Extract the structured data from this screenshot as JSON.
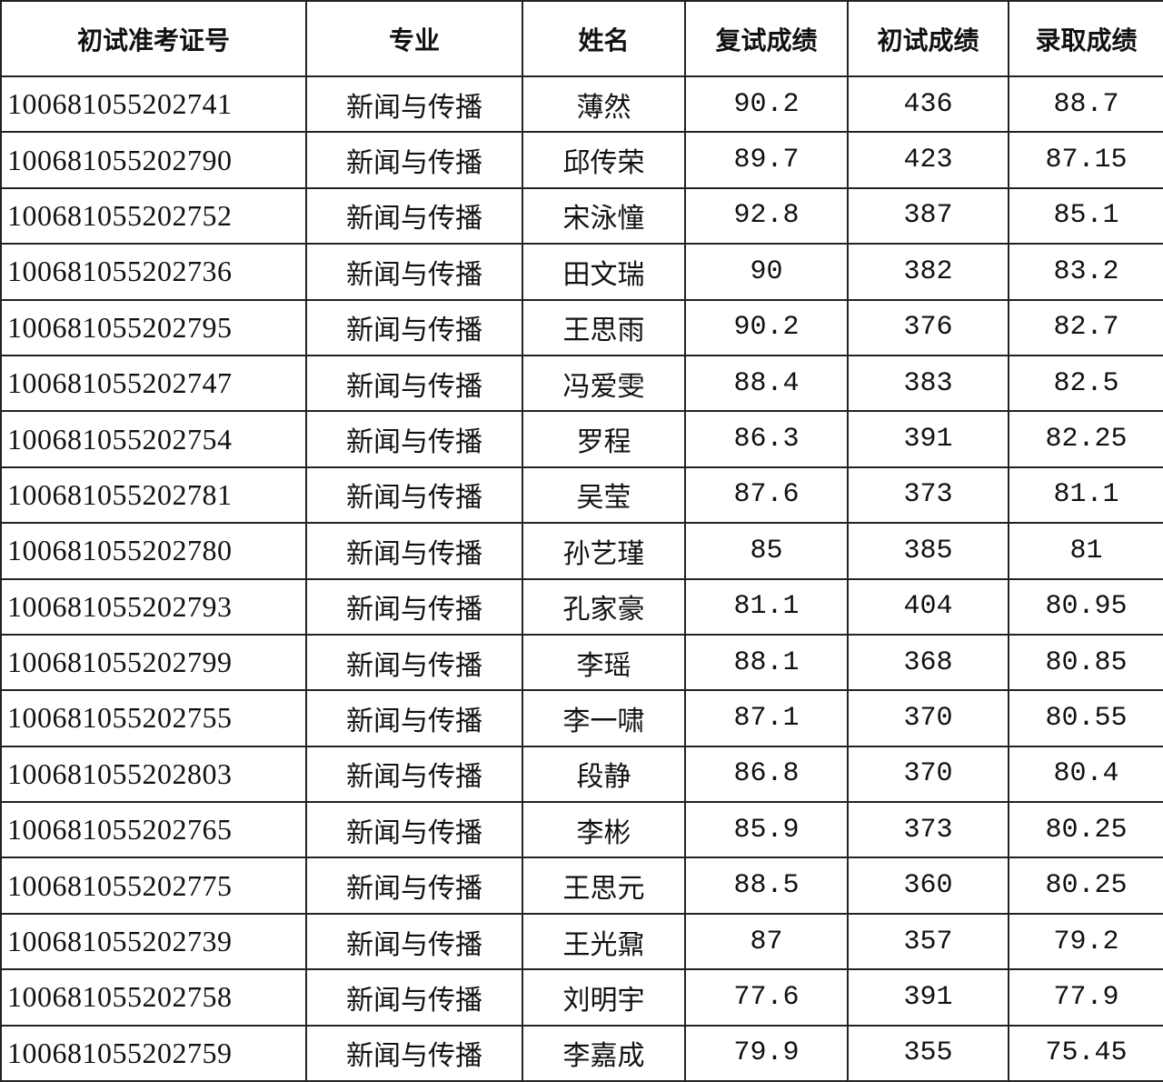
{
  "table": {
    "headers": [
      "初试准考证号",
      "专业",
      "姓名",
      "复试成绩",
      "初试成绩",
      "录取成绩"
    ],
    "rows": [
      [
        "100681055202741",
        "新闻与传播",
        "薄然",
        "90.2",
        "436",
        "88.7"
      ],
      [
        "100681055202790",
        "新闻与传播",
        "邱传荣",
        "89.7",
        "423",
        "87.15"
      ],
      [
        "100681055202752",
        "新闻与传播",
        "宋泳憧",
        "92.8",
        "387",
        "85.1"
      ],
      [
        "100681055202736",
        "新闻与传播",
        "田文瑞",
        "90",
        "382",
        "83.2"
      ],
      [
        "100681055202795",
        "新闻与传播",
        "王思雨",
        "90.2",
        "376",
        "82.7"
      ],
      [
        "100681055202747",
        "新闻与传播",
        "冯爱雯",
        "88.4",
        "383",
        "82.5"
      ],
      [
        "100681055202754",
        "新闻与传播",
        "罗程",
        "86.3",
        "391",
        "82.25"
      ],
      [
        "100681055202781",
        "新闻与传播",
        "吴莹",
        "87.6",
        "373",
        "81.1"
      ],
      [
        "100681055202780",
        "新闻与传播",
        "孙艺瑾",
        "85",
        "385",
        "81"
      ],
      [
        "100681055202793",
        "新闻与传播",
        "孔家豪",
        "81.1",
        "404",
        "80.95"
      ],
      [
        "100681055202799",
        "新闻与传播",
        "李瑶",
        "88.1",
        "368",
        "80.85"
      ],
      [
        "100681055202755",
        "新闻与传播",
        "李一啸",
        "87.1",
        "370",
        "80.55"
      ],
      [
        "100681055202803",
        "新闻与传播",
        "段静",
        "86.8",
        "370",
        "80.4"
      ],
      [
        "100681055202765",
        "新闻与传播",
        "李彬",
        "85.9",
        "373",
        "80.25"
      ],
      [
        "100681055202775",
        "新闻与传播",
        "王思元",
        "88.5",
        "360",
        "80.25"
      ],
      [
        "100681055202739",
        "新闻与传播",
        "王光鼐",
        "87",
        "357",
        "79.2"
      ],
      [
        "100681055202758",
        "新闻与传播",
        "刘明宇",
        "77.6",
        "391",
        "77.9"
      ],
      [
        "100681055202759",
        "新闻与传播",
        "李嘉成",
        "79.9",
        "355",
        "75.45"
      ]
    ]
  }
}
